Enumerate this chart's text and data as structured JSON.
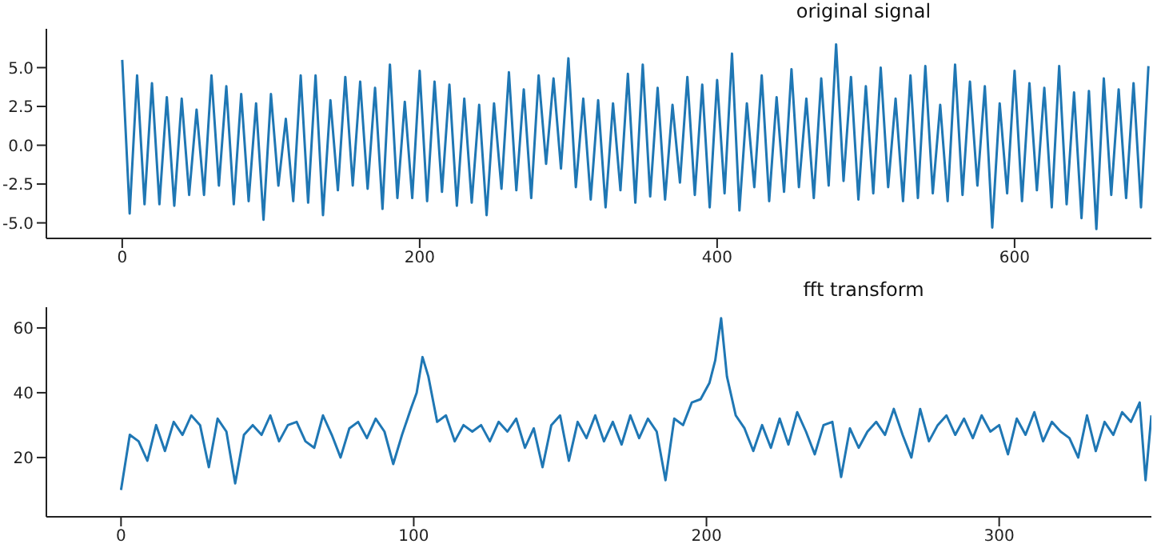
{
  "chart_data": [
    {
      "type": "line",
      "title": "original signal",
      "color": "#1f77b4",
      "x": [
        0,
        5,
        10,
        15,
        20,
        25,
        30,
        35,
        40,
        45,
        50,
        55,
        60,
        65,
        70,
        75,
        80,
        85,
        90,
        95,
        100,
        105,
        110,
        115,
        120,
        125,
        130,
        135,
        140,
        145,
        150,
        155,
        160,
        165,
        170,
        175,
        180,
        185,
        190,
        195,
        200,
        205,
        210,
        215,
        220,
        225,
        230,
        235,
        240,
        245,
        250,
        255,
        260,
        265,
        270,
        275,
        280,
        285,
        290,
        295,
        300,
        305,
        310,
        315,
        320,
        325,
        330,
        335,
        340,
        345,
        350,
        355,
        360,
        365,
        370,
        375,
        380,
        385,
        390,
        395,
        400,
        405,
        410,
        415,
        420,
        425,
        430,
        435,
        440,
        445,
        450,
        455,
        460,
        465,
        470,
        475,
        480,
        485,
        490,
        495,
        500,
        505,
        510,
        515,
        520,
        525,
        530,
        535,
        540,
        545,
        550,
        555,
        560,
        565,
        570,
        575,
        580,
        585,
        590,
        595,
        600,
        605,
        610,
        615,
        620,
        625,
        630,
        635,
        640,
        645,
        650,
        655,
        660,
        665,
        670,
        675,
        680,
        685,
        690
      ],
      "values": [
        5.5,
        -4.4,
        4.5,
        -3.8,
        4.0,
        -3.8,
        3.1,
        -3.9,
        3.0,
        -3.2,
        2.3,
        -3.2,
        4.5,
        -2.6,
        3.8,
        -3.8,
        3.3,
        -3.6,
        2.7,
        -4.8,
        3.3,
        -2.6,
        1.7,
        -3.6,
        4.5,
        -3.7,
        4.5,
        -4.5,
        2.9,
        -2.9,
        4.4,
        -2.6,
        4.1,
        -2.8,
        3.7,
        -4.1,
        5.2,
        -3.4,
        2.8,
        -3.4,
        4.8,
        -3.6,
        4.1,
        -3.0,
        3.9,
        -3.9,
        3.0,
        -3.7,
        2.6,
        -4.5,
        2.7,
        -2.8,
        4.7,
        -2.9,
        3.6,
        -3.4,
        4.5,
        -1.2,
        4.3,
        -1.5,
        5.6,
        -2.7,
        3.0,
        -3.5,
        2.9,
        -4.0,
        2.7,
        -2.9,
        4.6,
        -3.7,
        5.2,
        -3.3,
        3.7,
        -3.5,
        2.6,
        -2.4,
        4.4,
        -3.2,
        3.9,
        -4.0,
        4.2,
        -3.1,
        5.9,
        -4.2,
        2.7,
        -2.7,
        4.5,
        -3.6,
        3.1,
        -3.0,
        4.9,
        -2.7,
        3.0,
        -3.4,
        4.3,
        -2.6,
        6.5,
        -2.3,
        4.4,
        -3.5,
        3.8,
        -3.1,
        5.0,
        -2.7,
        3.0,
        -3.6,
        4.5,
        -3.4,
        5.1,
        -3.1,
        2.6,
        -3.6,
        5.2,
        -3.2,
        4.1,
        -2.6,
        3.8,
        -5.3,
        2.7,
        -3.1,
        4.8,
        -3.6,
        4.0,
        -2.9,
        3.7,
        -4.0,
        5.1,
        -3.8,
        3.4,
        -4.7,
        3.5,
        -5.4,
        4.3,
        -3.2,
        3.6,
        -3.4,
        4.0,
        -4.0,
        5.1
      ],
      "xlim": [
        -51,
        692
      ],
      "ylim": [
        -6,
        7.5
      ],
      "xticks": [
        0,
        200,
        400,
        600
      ],
      "yticks": [
        {
          "value": -5,
          "label": "-5.0"
        },
        {
          "value": -2.5,
          "label": "-2.5"
        },
        {
          "value": 0,
          "label": "0.0"
        },
        {
          "value": 2.5,
          "label": "2.5"
        },
        {
          "value": 5,
          "label": "5.0"
        }
      ]
    },
    {
      "type": "line",
      "title": "fft transform",
      "color": "#1f77b4",
      "x": [
        0,
        3,
        6,
        9,
        12,
        15,
        18,
        21,
        24,
        27,
        30,
        33,
        36,
        39,
        42,
        45,
        48,
        51,
        54,
        57,
        60,
        63,
        66,
        69,
        72,
        75,
        78,
        81,
        84,
        87,
        90,
        93,
        96,
        99,
        101,
        103,
        105,
        108,
        111,
        114,
        117,
        120,
        123,
        126,
        129,
        132,
        135,
        138,
        141,
        144,
        147,
        150,
        153,
        156,
        159,
        162,
        165,
        168,
        171,
        174,
        177,
        180,
        183,
        186,
        189,
        192,
        195,
        198,
        201,
        203,
        205,
        207,
        210,
        213,
        216,
        219,
        222,
        225,
        228,
        231,
        234,
        237,
        240,
        243,
        246,
        249,
        252,
        255,
        258,
        261,
        264,
        267,
        270,
        273,
        276,
        279,
        282,
        285,
        288,
        291,
        294,
        297,
        300,
        303,
        306,
        309,
        312,
        315,
        318,
        321,
        324,
        327,
        330,
        333,
        336,
        339,
        342,
        345,
        348,
        350,
        352
      ],
      "values": [
        10,
        27,
        25,
        19,
        30,
        22,
        31,
        27,
        33,
        30,
        17,
        32,
        28,
        12,
        27,
        30,
        27,
        33,
        25,
        30,
        31,
        25,
        23,
        33,
        27,
        20,
        29,
        31,
        26,
        32,
        28,
        18,
        27,
        35,
        40,
        51,
        45,
        31,
        33,
        25,
        30,
        28,
        30,
        25,
        31,
        28,
        32,
        23,
        29,
        17,
        30,
        33,
        19,
        31,
        26,
        33,
        25,
        31,
        24,
        33,
        26,
        32,
        28,
        13,
        32,
        30,
        37,
        38,
        43,
        50,
        63,
        45,
        33,
        29,
        22,
        30,
        23,
        32,
        24,
        34,
        28,
        21,
        30,
        31,
        14,
        29,
        23,
        28,
        31,
        27,
        35,
        27,
        20,
        35,
        25,
        30,
        33,
        27,
        32,
        26,
        33,
        28,
        30,
        21,
        32,
        27,
        34,
        25,
        31,
        28,
        26,
        20,
        33,
        22,
        31,
        27,
        34,
        31,
        37,
        13,
        33
      ],
      "xlim": [
        -25.5,
        352
      ],
      "ylim": [
        1.7,
        66.4
      ],
      "xticks": [
        0,
        100,
        200,
        300
      ],
      "yticks": [
        20,
        40,
        60
      ]
    }
  ]
}
